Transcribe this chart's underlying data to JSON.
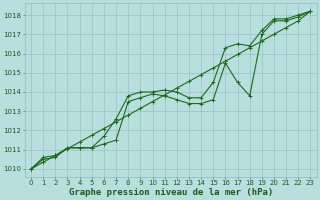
{
  "x": [
    0,
    1,
    2,
    3,
    4,
    5,
    6,
    7,
    8,
    9,
    10,
    11,
    12,
    13,
    14,
    15,
    16,
    17,
    18,
    19,
    20,
    21,
    22,
    23
  ],
  "line_straight": [
    1010.0,
    1010.35,
    1010.7,
    1011.05,
    1011.4,
    1011.75,
    1012.1,
    1012.45,
    1012.8,
    1013.15,
    1013.5,
    1013.85,
    1014.2,
    1014.55,
    1014.9,
    1015.25,
    1015.6,
    1015.95,
    1016.3,
    1016.65,
    1017.0,
    1017.35,
    1017.7,
    1018.2
  ],
  "line_upper": [
    1010.0,
    1010.6,
    1010.7,
    1011.1,
    1011.1,
    1011.1,
    1011.7,
    1012.6,
    1013.8,
    1014.0,
    1014.0,
    1014.1,
    1014.0,
    1013.7,
    1013.7,
    1014.5,
    1016.3,
    1016.5,
    1016.4,
    1017.2,
    1017.8,
    1017.8,
    1018.0,
    1018.2
  ],
  "line_lower": [
    1010.0,
    1010.5,
    1010.6,
    1011.1,
    1011.1,
    1011.1,
    1011.3,
    1011.5,
    1013.5,
    1013.7,
    1013.9,
    1013.8,
    1013.6,
    1013.4,
    1013.4,
    1013.6,
    1015.5,
    1014.5,
    1013.8,
    1017.0,
    1017.7,
    1017.7,
    1017.9,
    1018.2
  ],
  "line_color": "#1a6b1a",
  "bg_color": "#b8dede",
  "grid_color": "#90bcbc",
  "text_color": "#1a5c1a",
  "ylim": [
    1009.6,
    1018.6
  ],
  "yticks": [
    1010,
    1011,
    1012,
    1013,
    1014,
    1015,
    1016,
    1017,
    1018
  ],
  "xlim": [
    -0.5,
    23.5
  ],
  "xticks": [
    0,
    1,
    2,
    3,
    4,
    5,
    6,
    7,
    8,
    9,
    10,
    11,
    12,
    13,
    14,
    15,
    16,
    17,
    18,
    19,
    20,
    21,
    22,
    23
  ],
  "marker": "+",
  "marker_size": 3.5,
  "linewidth": 0.8,
  "xlabel": "Graphe pression niveau de la mer (hPa)",
  "axis_fontsize": 6.5,
  "tick_fontsize": 5.0
}
